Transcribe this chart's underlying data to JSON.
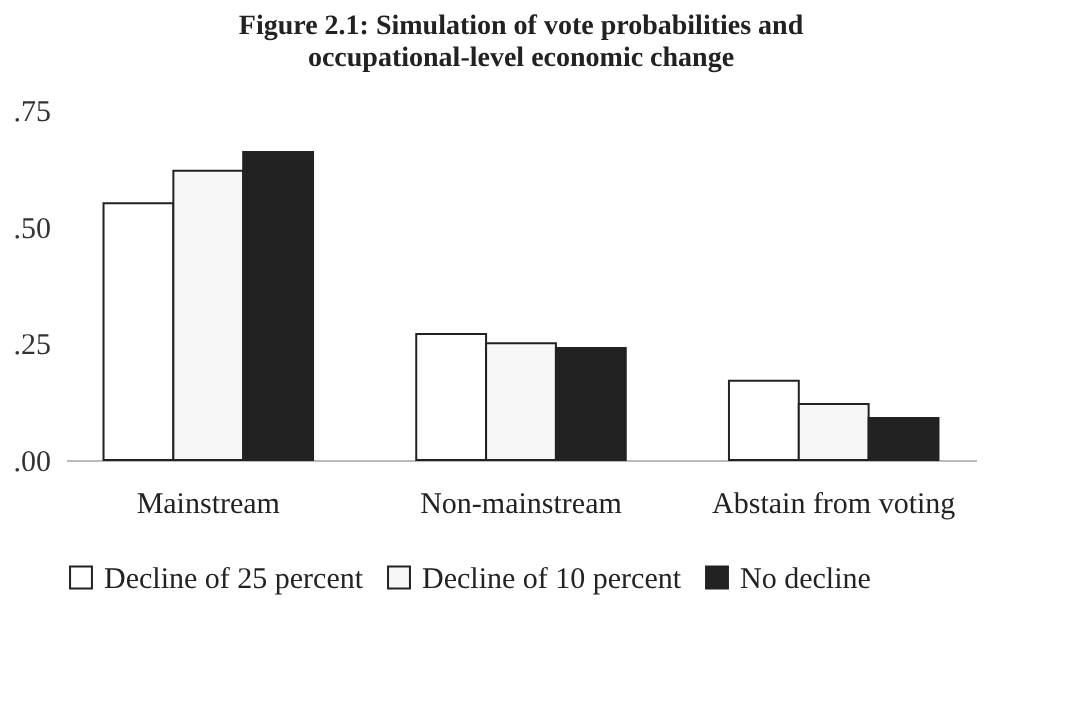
{
  "chart_data": {
    "type": "bar",
    "title": [
      "Figure 2.1: Simulation of vote probabilities and",
      "occupational-level economic change"
    ],
    "categories": [
      "Mainstream",
      "Non-mainstream",
      "Abstain from voting"
    ],
    "series": [
      {
        "name": "Decline of 25 percent",
        "color": "#ffffff",
        "values": [
          0.55,
          0.27,
          0.17
        ]
      },
      {
        "name": "Decline of 10 percent",
        "color": "#f7f7f7",
        "values": [
          0.62,
          0.25,
          0.12
        ]
      },
      {
        "name": "No decline",
        "color": "#222222",
        "values": [
          0.66,
          0.24,
          0.09
        ]
      }
    ],
    "ylim": [
      0,
      0.75
    ],
    "yticks": [
      {
        "value": 0,
        "label": ".00"
      },
      {
        "value": 0.25,
        "label": ".25"
      },
      {
        "value": 0.5,
        "label": ".50"
      },
      {
        "value": 0.75,
        "label": ".75"
      }
    ],
    "grid": false,
    "legend": "bottom"
  }
}
